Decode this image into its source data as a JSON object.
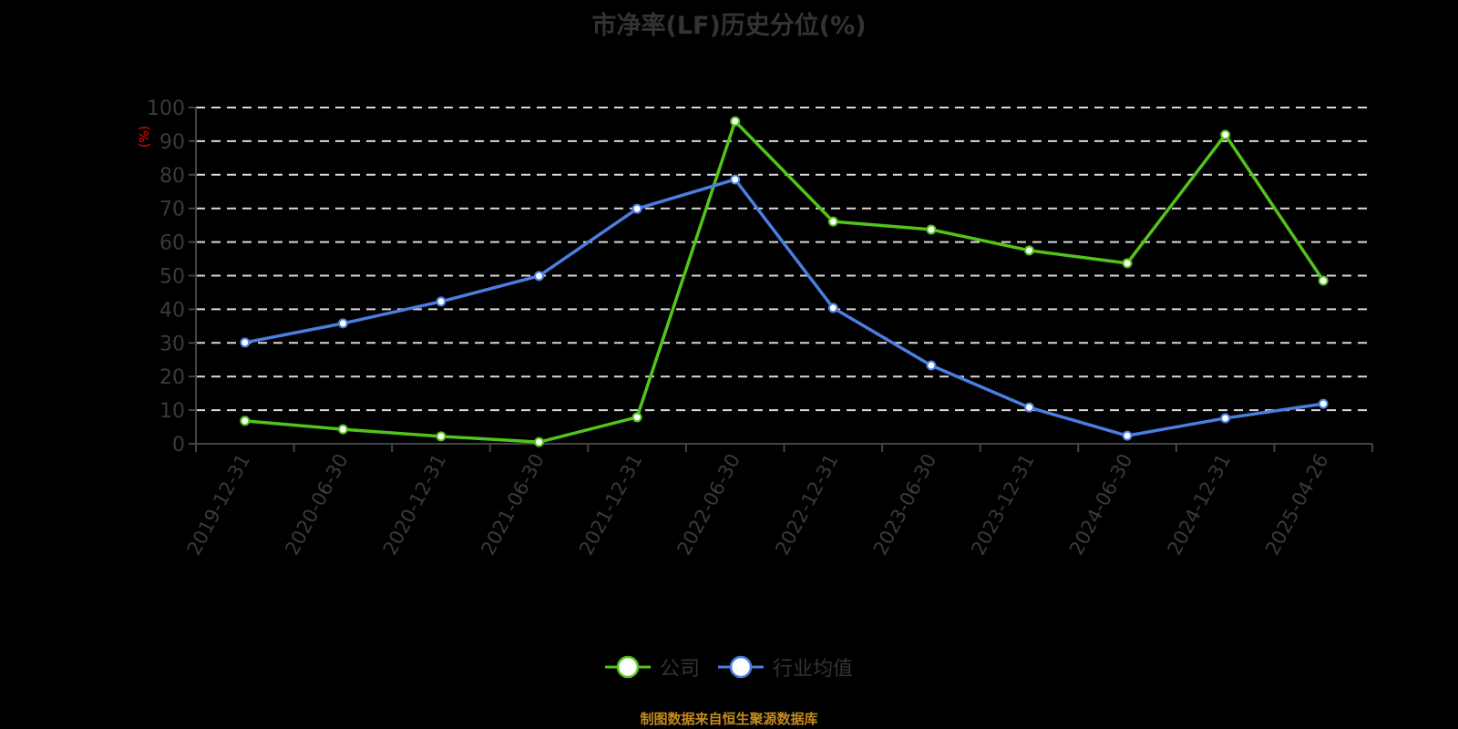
{
  "chart_data": {
    "type": "line",
    "title": "市净率(LF)历史分位(%)",
    "xlabel": "",
    "ylabel": "(%)",
    "ylim": [
      0,
      100
    ],
    "yticks": [
      0,
      10,
      20,
      30,
      40,
      50,
      60,
      70,
      80,
      90,
      100
    ],
    "grid": true,
    "legend_position": "bottom",
    "categories": [
      "2019-12-31",
      "2020-06-30",
      "2020-12-31",
      "2021-06-30",
      "2021-12-31",
      "2022-06-30",
      "2022-12-31",
      "2023-06-30",
      "2023-12-31",
      "2024-06-30",
      "2024-12-31",
      "2025-04-26"
    ],
    "series": [
      {
        "name": "公司",
        "color": "#52c41a",
        "values": [
          6.8,
          4.3,
          2.2,
          0.5,
          7.9,
          95.9,
          66.1,
          63.7,
          57.5,
          53.7,
          91.9,
          48.5
        ]
      },
      {
        "name": "行业均值",
        "color": "#4a7ee0",
        "values": [
          30.1,
          35.8,
          42.3,
          49.9,
          69.9,
          78.6,
          40.4,
          23.3,
          10.8,
          2.4,
          7.6,
          11.9
        ]
      }
    ]
  },
  "legend": {
    "items": [
      {
        "label": "公司",
        "color": "#52c41a"
      },
      {
        "label": "行业均值",
        "color": "#4a7ee0"
      }
    ]
  },
  "source_note": "制图数据来自恒生聚源数据库"
}
